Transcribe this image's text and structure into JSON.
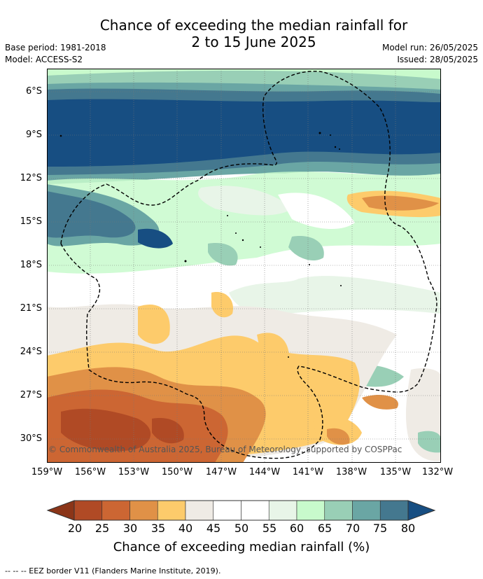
{
  "title": {
    "line1": "Chance of exceeding the median rainfall for",
    "line2": "2 to 15 June 2025"
  },
  "meta": {
    "base_period": "Base period: 1981-2018",
    "model": "Model: ACCESS-S2",
    "model_run": "Model run: 26/05/2025",
    "issued": "Issued: 28/05/2025"
  },
  "map": {
    "lat_labels": [
      "6°S",
      "9°S",
      "12°S",
      "15°S",
      "18°S",
      "21°S",
      "24°S",
      "27°S",
      "30°S"
    ],
    "lon_labels": [
      "159°W",
      "156°W",
      "153°W",
      "150°W",
      "147°W",
      "144°W",
      "141°W",
      "138°W",
      "135°W",
      "132°W"
    ],
    "copyright": "© Commonwealth of Australia 2025, Bureau of Meteorology, supported by COSPPac"
  },
  "colorbar": {
    "ticks": [
      "20",
      "25",
      "30",
      "35",
      "40",
      "45",
      "50",
      "55",
      "60",
      "65",
      "70",
      "75",
      "80"
    ],
    "colors": {
      "below20": "#8b3518",
      "20-25": "#b04a25",
      "25-30": "#cc6633",
      "30-35": "#e09147",
      "35-40": "#fdcb6b",
      "40-45": "#efebe5",
      "45-50": "#ffffff",
      "50-55": "#ffffff",
      "55-60": "#e8f5e8",
      "60-65": "#c8facc",
      "65-70": "#99cfb6",
      "70-75": "#6aa6a4",
      "75-80": "#44788f",
      "above80": "#174e82"
    },
    "label": "Chance of exceeding median rainfall (%)"
  },
  "footnote": "--  --  -- EEZ border V11 (Flanders Marine Institute, 2019)."
}
